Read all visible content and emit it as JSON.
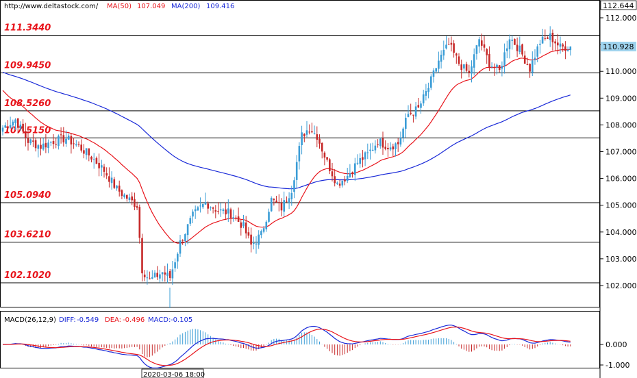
{
  "header": {
    "url": "http://www.deltastock.com/",
    "ma50_label": "MA(50)",
    "ma50_value": "107.049",
    "ma200_label": "MA(200)",
    "ma200_value": "109.416"
  },
  "price_axis": {
    "top_value": "112.644",
    "current_value": "110.928",
    "ticks": [
      "112.000",
      "111.000",
      "110.000",
      "109.000",
      "108.000",
      "107.000",
      "106.000",
      "105.000",
      "104.000",
      "103.000",
      "102.000"
    ]
  },
  "levels": [
    {
      "label": "111.3440",
      "value": 111.344
    },
    {
      "label": "109.9450",
      "value": 109.945
    },
    {
      "label": "108.5260",
      "value": 108.526
    },
    {
      "label": "107.5150",
      "value": 107.515
    },
    {
      "label": "105.0940",
      "value": 105.094
    },
    {
      "label": "103.6210",
      "value": 103.621
    },
    {
      "label": "102.1020",
      "value": 102.102
    }
  ],
  "macd": {
    "title": "MACD(26,12,9)",
    "diff_label": "DIFF:",
    "diff_value": "-0.549",
    "dea_label": "DEA:",
    "dea_value": "-0.496",
    "macd_label": "MACD:",
    "macd_value": "-0.105",
    "ticks": [
      "0.000",
      "-1.000"
    ]
  },
  "time_cursor": "2020-03-06 18:00",
  "colors": {
    "bull": "#3a9cd6",
    "bear": "#c62828",
    "ma50": "#e8141b",
    "ma200": "#1a2ad8",
    "level_label": "#e8141b",
    "current_price_bg": "#9fd3ee"
  },
  "chart_data": {
    "type": "candlestick",
    "price_range": [
      101.2,
      112.644
    ],
    "macd_range": [
      -1.0,
      0.8
    ],
    "anchors": [
      [
        0,
        107.9
      ],
      [
        5,
        108.2
      ],
      [
        10,
        107.4
      ],
      [
        15,
        107.2
      ],
      [
        20,
        107.4
      ],
      [
        25,
        107.5
      ],
      [
        30,
        107.2
      ],
      [
        35,
        106.8
      ],
      [
        40,
        106.3
      ],
      [
        45,
        105.6
      ],
      [
        50,
        105.2
      ],
      [
        53,
        105.0
      ],
      [
        55,
        102.6
      ],
      [
        58,
        102.2
      ],
      [
        63,
        102.5
      ],
      [
        66,
        102.3
      ],
      [
        70,
        103.6
      ],
      [
        75,
        104.6
      ],
      [
        80,
        105.1
      ],
      [
        85,
        104.8
      ],
      [
        90,
        104.7
      ],
      [
        95,
        104.2
      ],
      [
        98,
        103.5
      ],
      [
        102,
        103.9
      ],
      [
        106,
        105.2
      ],
      [
        110,
        104.9
      ],
      [
        114,
        105.6
      ],
      [
        118,
        107.6
      ],
      [
        121,
        107.9
      ],
      [
        124,
        107.6
      ],
      [
        128,
        106.6
      ],
      [
        132,
        105.8
      ],
      [
        136,
        106.1
      ],
      [
        140,
        106.6
      ],
      [
        144,
        106.9
      ],
      [
        148,
        107.4
      ],
      [
        152,
        107.2
      ],
      [
        156,
        107.3
      ],
      [
        160,
        108.4
      ],
      [
        164,
        108.6
      ],
      [
        168,
        109.4
      ],
      [
        172,
        110.4
      ],
      [
        176,
        111.0
      ],
      [
        180,
        110.3
      ],
      [
        184,
        109.9
      ],
      [
        188,
        111.2
      ],
      [
        192,
        110.3
      ],
      [
        196,
        110.0
      ],
      [
        200,
        111.3
      ],
      [
        204,
        110.8
      ],
      [
        208,
        110.1
      ],
      [
        212,
        111.1
      ],
      [
        216,
        111.3
      ],
      [
        220,
        110.9
      ],
      [
        224,
        110.93
      ]
    ]
  }
}
